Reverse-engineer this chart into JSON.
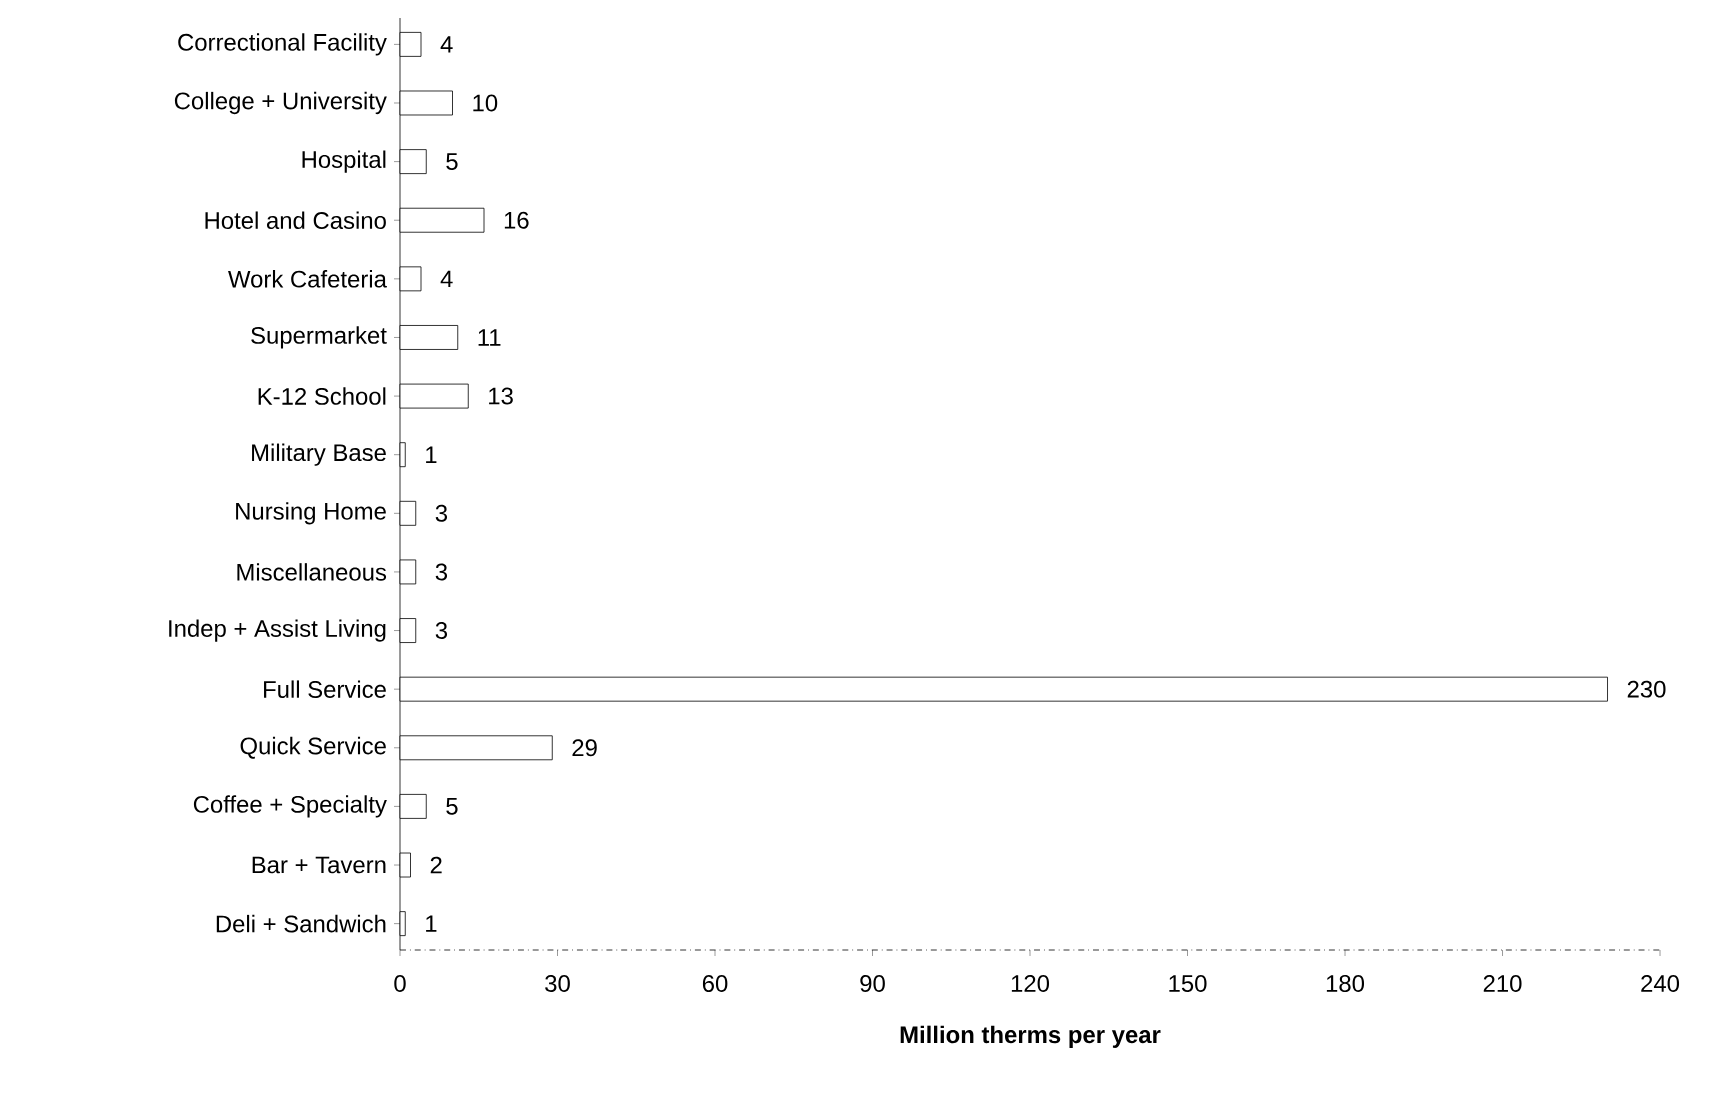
{
  "chart_data": {
    "type": "bar",
    "orientation": "horizontal",
    "xlabel": "Million therms per year",
    "categories": [
      "Correctional Facility",
      "College + University",
      "Hospital",
      "Hotel and Casino",
      "Work Cafeteria",
      "Supermarket",
      "K-12 School",
      "Military Base",
      "Nursing Home",
      "Miscellaneous",
      "Indep + Assist Living",
      "Full Service",
      "Quick Service",
      "Coffee + Specialty",
      "Bar + Tavern",
      "Deli + Sandwich"
    ],
    "values": [
      4,
      10,
      5,
      16,
      4,
      11,
      13,
      1,
      3,
      3,
      3,
      230,
      29,
      5,
      2,
      1
    ],
    "color": "#ffffff",
    "xlim": [
      0,
      240
    ],
    "xticks": [
      0,
      30,
      60,
      90,
      120,
      150,
      180,
      210,
      240
    ],
    "data_labels": true
  }
}
